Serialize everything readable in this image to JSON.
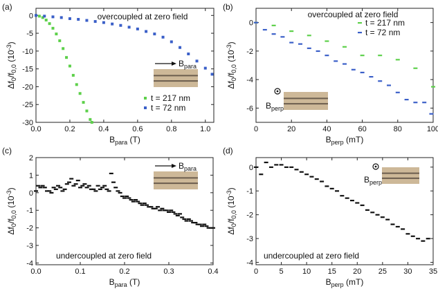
{
  "chart_data": [
    {
      "panel": "(a)",
      "type": "scatter",
      "annotation": "overcoupled at zero field",
      "xlabel": {
        "main": "B",
        "sub": "para",
        "unit": "(T)"
      },
      "ylabel": {
        "main": "Δf",
        "sub0": "0",
        "mid": "/f",
        "sub1": "0,0",
        "unit": "(10",
        "exp": "-3",
        "close": ")"
      },
      "xlim": [
        0,
        1.05
      ],
      "ylim": [
        -30,
        2
      ],
      "xticks": [
        "0.0",
        "0.2",
        "0.4",
        "0.6",
        "0.8",
        "1.0"
      ],
      "xtick_values": [
        0,
        0.2,
        0.4,
        0.6,
        0.8,
        1.0
      ],
      "yticks": [
        "-30",
        "-25",
        "-20",
        "-15",
        "-10",
        "-5",
        "0"
      ],
      "ytick_values": [
        -30,
        -25,
        -20,
        -15,
        -10,
        -5,
        0
      ],
      "inset": {
        "field_label": {
          "main": "B",
          "sub": "para"
        },
        "orientation": "parallel"
      },
      "legend_position": "bottom-right",
      "series": [
        {
          "name": "t = 217 nm",
          "color": "#5dd04a",
          "marker": "square",
          "x": [
            0,
            0.02,
            0.04,
            0.06,
            0.08,
            0.1,
            0.12,
            0.14,
            0.16,
            0.18,
            0.2,
            0.22,
            0.24,
            0.26,
            0.28,
            0.3,
            0.32,
            0.33
          ],
          "y": [
            0,
            -0.2,
            -0.6,
            -1.3,
            -2.3,
            -3.6,
            -5.2,
            -7.1,
            -9.3,
            -11.8,
            -14.2,
            -16.8,
            -19.4,
            -21.9,
            -24.4,
            -26.8,
            -29.2,
            -30
          ]
        },
        {
          "name": "t = 72 nm",
          "color": "#3a5fc8",
          "marker": "square",
          "x": [
            0,
            0.05,
            0.1,
            0.15,
            0.2,
            0.25,
            0.3,
            0.35,
            0.4,
            0.45,
            0.5,
            0.55,
            0.6,
            0.65,
            0.7,
            0.75,
            0.8,
            0.85,
            0.9,
            0.95,
            1.0,
            1.04
          ],
          "y": [
            0,
            -0.2,
            -0.4,
            -0.6,
            -0.9,
            -1.1,
            -1.4,
            -1.7,
            -2.0,
            -2.4,
            -2.8,
            -3.3,
            -3.8,
            -4.5,
            -5.2,
            -6.1,
            -7.4,
            -9.0,
            -10.8,
            -12.8,
            -14.8,
            -16.5
          ]
        }
      ]
    },
    {
      "panel": "(b)",
      "type": "scatter",
      "annotation": "overcoupled at zero field",
      "xlabel": {
        "main": "B",
        "sub": "perp",
        "unit": "(mT)"
      },
      "ylabel": {
        "main": "Δf",
        "sub0": "0",
        "mid": "/f",
        "sub1": "0,0",
        "unit": "(10",
        "exp": "-3",
        "close": ")"
      },
      "xlim": [
        0,
        100
      ],
      "ylim": [
        -7,
        1
      ],
      "xticks": [
        "0",
        "20",
        "40",
        "60",
        "80",
        "100"
      ],
      "xtick_values": [
        0,
        20,
        40,
        60,
        80,
        100
      ],
      "yticks": [
        "-6",
        "-4",
        "-2",
        "0"
      ],
      "ytick_values": [
        -6,
        -4,
        -2,
        0
      ],
      "inset": {
        "field_label": {
          "main": "B",
          "sub": "perp"
        },
        "orientation": "perpendicular"
      },
      "legend_position": "top-right",
      "series": [
        {
          "name": "t = 217 nm",
          "color": "#5dd04a",
          "marker": "dash",
          "x": [
            0,
            10,
            20,
            30,
            40,
            50,
            60,
            70,
            80,
            90,
            100
          ],
          "y": [
            0,
            -0.2,
            -0.6,
            -0.9,
            -1.3,
            -1.7,
            -2.3,
            -2.3,
            -2.6,
            -3.2,
            -4.5
          ]
        },
        {
          "name": "t = 72 nm",
          "color": "#3a5fc8",
          "marker": "dash",
          "x": [
            0,
            5,
            10,
            15,
            20,
            25,
            30,
            35,
            40,
            45,
            50,
            55,
            60,
            65,
            70,
            75,
            80,
            85,
            90,
            95,
            99
          ],
          "y": [
            0,
            -0.5,
            -0.8,
            -1.0,
            -1.4,
            -1.5,
            -1.8,
            -2.0,
            -2.3,
            -2.7,
            -2.9,
            -3.3,
            -3.5,
            -3.8,
            -4.1,
            -4.4,
            -4.9,
            -5.4,
            -5.6,
            -5.6,
            -6.4
          ]
        }
      ]
    },
    {
      "panel": "(c)",
      "type": "scatter",
      "annotation": "undercoupled at zero field",
      "xlabel": {
        "main": "B",
        "sub": "para",
        "unit": "(T)"
      },
      "ylabel": {
        "main": "Δf",
        "sub0": "0",
        "mid": "/f",
        "sub1": "0,0",
        "unit": "(10",
        "exp": "-3",
        "close": ")"
      },
      "xlim": [
        0,
        0.4
      ],
      "ylim": [
        -4.1,
        2
      ],
      "xticks": [
        "0.0",
        "0.1",
        "0.2",
        "0.3",
        "0.4"
      ],
      "xtick_values": [
        0,
        0.1,
        0.2,
        0.3,
        0.4
      ],
      "yticks": [
        "-4",
        "-3",
        "-2",
        "-1",
        "0",
        "1",
        "2"
      ],
      "ytick_values": [
        -4,
        -3,
        -2,
        -1,
        0,
        1,
        2
      ],
      "inset": {
        "field_label": {
          "main": "B",
          "sub": "para"
        },
        "orientation": "parallel"
      },
      "series": [
        {
          "color": "#111111",
          "marker": "dash",
          "x": [
            0,
            0.005,
            0.01,
            0.015,
            0.02,
            0.025,
            0.03,
            0.035,
            0.04,
            0.045,
            0.05,
            0.055,
            0.06,
            0.065,
            0.07,
            0.075,
            0.08,
            0.085,
            0.09,
            0.095,
            0.1,
            0.105,
            0.11,
            0.115,
            0.12,
            0.125,
            0.13,
            0.135,
            0.14,
            0.145,
            0.15,
            0.155,
            0.16,
            0.165,
            0.17,
            0.175,
            0.18,
            0.185,
            0.19,
            0.195,
            0.2,
            0.205,
            0.21,
            0.215,
            0.22,
            0.225,
            0.23,
            0.235,
            0.24,
            0.245,
            0.25,
            0.255,
            0.26,
            0.265,
            0.27,
            0.275,
            0.28,
            0.285,
            0.29,
            0.295,
            0.3,
            0.305,
            0.31,
            0.315,
            0.32,
            0.325,
            0.33,
            0.335,
            0.34,
            0.345,
            0.35,
            0.355,
            0.36,
            0.365,
            0.37,
            0.375,
            0.38,
            0.385,
            0.39,
            0.395,
            0.4
          ],
          "y": [
            0.1,
            0.4,
            0.3,
            0.4,
            0.3,
            0.1,
            0.1,
            0.0,
            0.3,
            0.2,
            0.4,
            0.3,
            0.1,
            0.2,
            0.5,
            0.6,
            0.8,
            0.4,
            0.5,
            0.7,
            0.3,
            0.4,
            0.5,
            0.3,
            0.4,
            0.2,
            0.2,
            0.1,
            0.4,
            0.2,
            0.3,
            0.4,
            0.2,
            0.1,
            1.1,
            0.6,
            0.3,
            0.1,
            0.0,
            -0.2,
            -0.3,
            -0.2,
            -0.3,
            -0.4,
            -0.5,
            -0.4,
            -0.5,
            -0.6,
            -0.7,
            -0.6,
            -0.7,
            -0.8,
            -0.8,
            -0.9,
            -0.9,
            -0.8,
            -1.0,
            -0.9,
            -1.0,
            -1.0,
            -1.1,
            -1.0,
            -1.1,
            -1.2,
            -1.3,
            -1.2,
            -1.4,
            -1.5,
            -1.6,
            -1.5,
            -1.6,
            -1.7,
            -1.7,
            -1.8,
            -1.8,
            -1.9,
            -1.8,
            -1.9,
            -2.0,
            -2.0,
            -2.0
          ]
        }
      ]
    },
    {
      "panel": "(d)",
      "type": "scatter",
      "annotation": "undercoupled at zero field",
      "xlabel": {
        "main": "B",
        "sub": "perp",
        "unit": "(mT)"
      },
      "ylabel": {
        "main": "Δf",
        "sub0": "0",
        "mid": "/f",
        "sub1": "0,0",
        "unit": "(10",
        "exp": "-3",
        "close": ")"
      },
      "xlim": [
        0,
        35
      ],
      "ylim": [
        -4.1,
        0.4
      ],
      "xticks": [
        "0",
        "5",
        "10",
        "15",
        "20",
        "25",
        "30",
        "35"
      ],
      "xtick_values": [
        0,
        5,
        10,
        15,
        20,
        25,
        30,
        35
      ],
      "yticks": [
        "-4",
        "-3",
        "-2",
        "-1",
        "0"
      ],
      "ytick_values": [
        -4,
        -3,
        -2,
        -1,
        0
      ],
      "inset": {
        "field_label": {
          "main": "B",
          "sub": "perp"
        },
        "orientation": "perpendicular"
      },
      "series": [
        {
          "color": "#111111",
          "marker": "dash",
          "x": [
            0,
            1,
            2,
            3,
            4,
            5,
            6,
            7,
            8,
            9,
            10,
            11,
            12,
            13,
            14,
            15,
            16,
            17,
            18,
            19,
            20,
            21,
            22,
            23,
            24,
            25,
            26,
            27,
            28,
            29,
            30,
            31,
            32,
            33,
            34
          ],
          "y": [
            0.0,
            -0.3,
            0.2,
            0.0,
            0.1,
            0.1,
            0.0,
            0.0,
            -0.1,
            -0.2,
            -0.3,
            -0.4,
            -0.5,
            -0.6,
            -0.8,
            -0.9,
            -1.0,
            -1.2,
            -1.3,
            -1.4,
            -1.5,
            -1.6,
            -1.8,
            -1.9,
            -2.0,
            -2.1,
            -2.2,
            -2.4,
            -2.5,
            -2.6,
            -2.8,
            -2.9,
            -3.0,
            -3.1,
            -3.0
          ]
        }
      ]
    }
  ]
}
